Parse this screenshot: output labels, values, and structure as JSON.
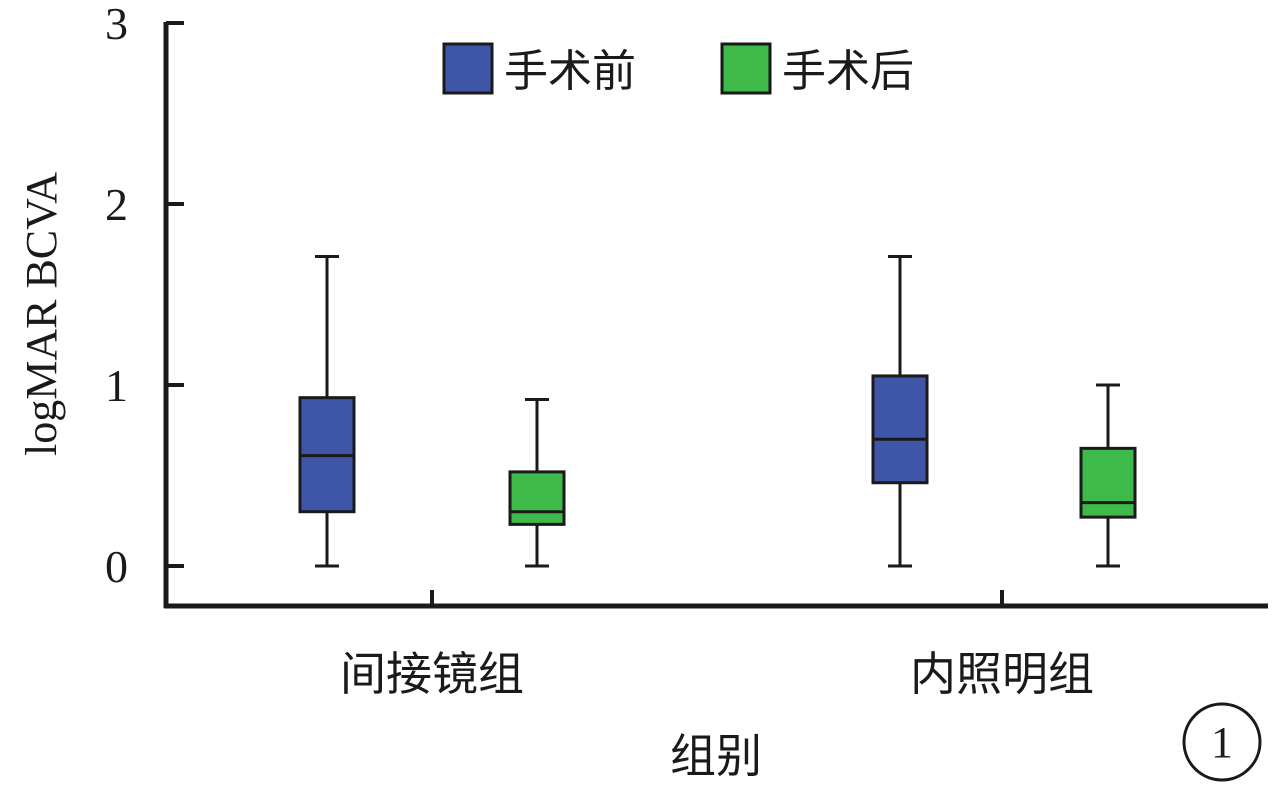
{
  "chart_data": {
    "type": "box",
    "title": "",
    "xlabel": "组别",
    "ylabel": "logMAR BCVA",
    "ylim": [
      0,
      3
    ],
    "yticks": [
      "0",
      "1",
      "2",
      "3"
    ],
    "categories": [
      "间接镜组",
      "内照明组"
    ],
    "legend_position": "top-center",
    "series": [
      {
        "name": "手术前",
        "color": "#3f56a8",
        "boxes": [
          {
            "min": 0.0,
            "q1": 0.3,
            "median": 0.61,
            "q3": 0.93,
            "max": 1.71
          },
          {
            "min": 0.0,
            "q1": 0.46,
            "median": 0.7,
            "q3": 1.05,
            "max": 1.71
          }
        ]
      },
      {
        "name": "手术后",
        "color": "#3dba4a",
        "boxes": [
          {
            "min": 0.0,
            "q1": 0.23,
            "median": 0.3,
            "q3": 0.52,
            "max": 0.92
          },
          {
            "min": 0.0,
            "q1": 0.27,
            "median": 0.35,
            "q3": 0.65,
            "max": 1.0
          }
        ]
      }
    ],
    "panel_label": "1"
  }
}
